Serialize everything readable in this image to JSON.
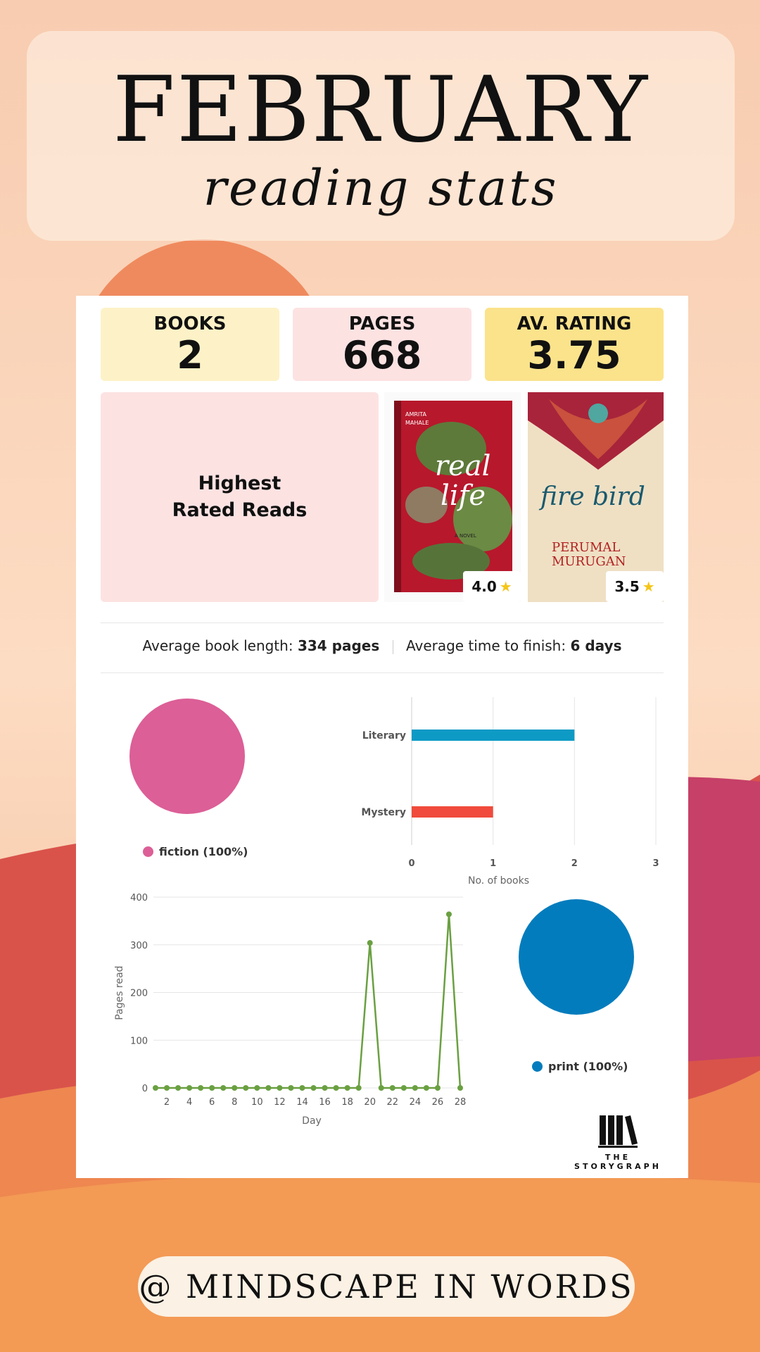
{
  "header": {
    "month": "FEBRUARY",
    "subtitle": "reading stats"
  },
  "stats": [
    {
      "label": "BOOKS",
      "value": "2",
      "color": "#fdf2c7"
    },
    {
      "label": "PAGES",
      "value": "668",
      "color": "#fde2e2"
    },
    {
      "label": "AV. RATING",
      "value": "3.75",
      "color": "#fbe38c"
    }
  ],
  "highest_rated": {
    "label": "Highest Rated Reads",
    "books": [
      {
        "title": "real life",
        "author": "AMRITA MAHALE",
        "tag": "A NOVEL",
        "rating": "4.0"
      },
      {
        "title": "fire bird",
        "author": "PERUMAL MURUGAN",
        "rating": "3.5"
      }
    ]
  },
  "averages": {
    "length_label": "Average book length:",
    "length_value": "334 pages",
    "time_label": "Average time to finish:",
    "time_value": "6 days"
  },
  "chart_data": [
    {
      "type": "pie",
      "slices": [
        {
          "label": "fiction (100%)",
          "value": 100,
          "color": "#dc5f97"
        }
      ]
    },
    {
      "type": "bar",
      "orientation": "horizontal",
      "categories": [
        "Literary",
        "Mystery"
      ],
      "values": [
        2,
        1
      ],
      "colors": [
        "#0d9ac5",
        "#f04b3c"
      ],
      "xlabel": "No. of books",
      "xticks": [
        "0",
        "1",
        "2",
        "3"
      ],
      "xlim": [
        0,
        3
      ]
    },
    {
      "type": "line",
      "x": [
        1,
        2,
        3,
        4,
        5,
        6,
        7,
        8,
        9,
        10,
        11,
        12,
        13,
        14,
        15,
        16,
        17,
        18,
        19,
        20,
        21,
        22,
        23,
        24,
        25,
        26,
        27,
        28
      ],
      "values": [
        0,
        0,
        0,
        0,
        0,
        0,
        0,
        0,
        0,
        0,
        0,
        0,
        0,
        0,
        0,
        0,
        0,
        0,
        0,
        304,
        0,
        0,
        0,
        0,
        0,
        0,
        364,
        0
      ],
      "color": "#6aa041",
      "xlabel": "Day",
      "ylabel": "Pages read",
      "yticks": [
        "0",
        "100",
        "200",
        "300",
        "400"
      ],
      "xticks": [
        "2",
        "4",
        "6",
        "8",
        "10",
        "12",
        "14",
        "16",
        "18",
        "20",
        "22",
        "24",
        "26",
        "28"
      ],
      "ylim": [
        0,
        400
      ]
    },
    {
      "type": "pie",
      "slices": [
        {
          "label": "print (100%)",
          "value": 100,
          "color": "#037cbd"
        }
      ]
    }
  ],
  "logo": {
    "line1": "THE",
    "line2": "STORYGRAPH"
  },
  "footer": {
    "handle": "@ MINDSCAPE IN WORDS"
  }
}
